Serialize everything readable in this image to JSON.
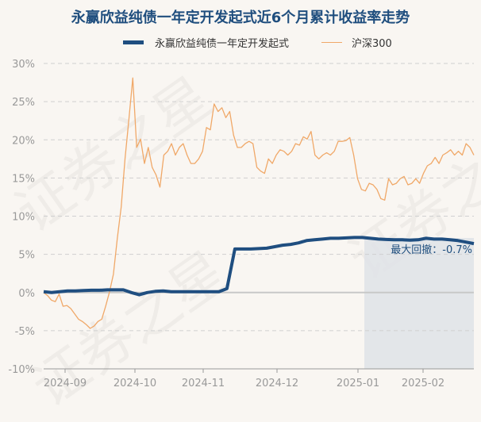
{
  "chart_data": {
    "type": "line",
    "title": "永赢欣益纯债一年定开发起式近6个月累计收益率走势",
    "ylim": [
      -10,
      30
    ],
    "yticks": [
      "30%",
      "25%",
      "20%",
      "15%",
      "10%",
      "5%",
      "0%",
      "-5%",
      "-10%"
    ],
    "xticks": [
      "2024-09",
      "2024-10",
      "2024-11",
      "2024-12",
      "2025-01",
      "2025-02"
    ],
    "grid": true,
    "legend_position": "top",
    "series": [
      {
        "name": "永赢欣益纯债一年定开发起式",
        "color": "#1f4e80",
        "values": [
          0.1,
          0.0,
          0.1,
          0.2,
          0.2,
          0.25,
          0.3,
          0.3,
          0.35,
          0.35,
          0.35,
          0.0,
          -0.3,
          0.0,
          0.15,
          0.2,
          0.1,
          0.1,
          0.1,
          0.1,
          0.1,
          0.1,
          0.1,
          0.5,
          5.7,
          5.7,
          5.7,
          5.75,
          5.8,
          6.0,
          6.2,
          6.3,
          6.5,
          6.8,
          6.9,
          7.0,
          7.1,
          7.1,
          7.15,
          7.2,
          7.2,
          7.1,
          7.0,
          6.95,
          6.9,
          6.9,
          6.85,
          6.9,
          7.1,
          7.0,
          7.0,
          6.9,
          6.8,
          6.6,
          6.4
        ]
      },
      {
        "name": "沪深300",
        "color": "#f0a868",
        "values": [
          0,
          -0.4,
          -1.0,
          -1.2,
          -0.2,
          -1.8,
          -1.7,
          -2.1,
          -2.8,
          -3.5,
          -3.8,
          -4.2,
          -4.7,
          -4.4,
          -3.8,
          -3.5,
          -1.8,
          0.1,
          2.4,
          7.1,
          11.2,
          17.5,
          22.7,
          28.1,
          19.0,
          20.1,
          16.9,
          19.0,
          16.4,
          15.4,
          13.8,
          18.0,
          18.5,
          19.5,
          18.0,
          19.0,
          19.5,
          18.0,
          16.9,
          16.9,
          17.5,
          18.5,
          21.6,
          21.3,
          24.7,
          23.7,
          24.2,
          22.9,
          23.7,
          20.6,
          19.0,
          19.0,
          19.5,
          19.8,
          19.5,
          16.4,
          15.9,
          15.6,
          17.5,
          16.9,
          18.0,
          18.7,
          18.5,
          18.0,
          18.5,
          19.5,
          19.3,
          20.4,
          20.1,
          21.1,
          18.0,
          17.5,
          18.0,
          18.3,
          18.0,
          18.5,
          19.8,
          19.8,
          19.9,
          20.3,
          18.0,
          14.9,
          13.5,
          13.3,
          14.3,
          14.1,
          13.5,
          12.3,
          12.1,
          14.9,
          14.1,
          14.3,
          14.9,
          15.2,
          14.1,
          14.3,
          14.9,
          14.3,
          15.6,
          16.6,
          16.9,
          17.7,
          16.9,
          18.0,
          18.3,
          18.7,
          18.0,
          18.5,
          18.0,
          19.5,
          19.0,
          18.0
        ]
      }
    ],
    "annotation": "最大回撤：-0.7%",
    "max_drawdown": -0.7
  },
  "watermark": "证券之星"
}
